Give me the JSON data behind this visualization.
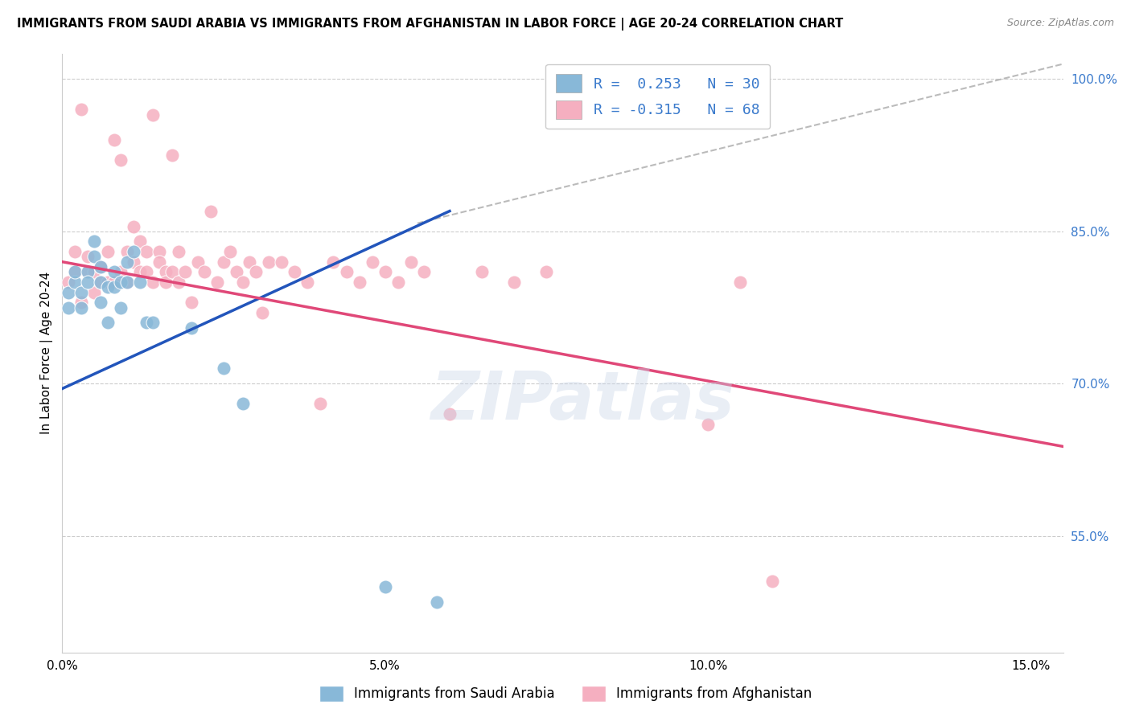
{
  "title": "IMMIGRANTS FROM SAUDI ARABIA VS IMMIGRANTS FROM AFGHANISTAN IN LABOR FORCE | AGE 20-24 CORRELATION CHART",
  "source": "Source: ZipAtlas.com",
  "ylabel": "In Labor Force | Age 20-24",
  "xmin": 0.0,
  "xmax": 0.155,
  "ymin": 0.435,
  "ymax": 1.025,
  "right_ytick_labels": [
    "100.0%",
    "85.0%",
    "70.0%",
    "55.0%"
  ],
  "right_ytick_positions": [
    1.0,
    0.85,
    0.7,
    0.55
  ],
  "xticks": [
    0.0,
    0.05,
    0.1,
    0.15
  ],
  "xtick_labels": [
    "0.0%",
    "5.0%",
    "10.0%",
    "15.0%"
  ],
  "saudi_color": "#88b8d8",
  "afghan_color": "#f5afc0",
  "saudi_line_color": "#2255bb",
  "afghan_line_color": "#e04878",
  "grid_color": "#cccccc",
  "watermark": "ZIPatlas",
  "saudi_line_x0": 0.0,
  "saudi_line_y0": 0.695,
  "saudi_line_x1": 0.06,
  "saudi_line_y1": 0.87,
  "afghan_line_x0": 0.0,
  "afghan_line_y0": 0.82,
  "afghan_line_x1": 0.155,
  "afghan_line_y1": 0.638,
  "dash_line_x0": 0.055,
  "dash_line_y0": 0.858,
  "dash_line_x1": 0.155,
  "dash_line_y1": 1.015,
  "saudi_x": [
    0.001,
    0.001,
    0.002,
    0.002,
    0.003,
    0.003,
    0.004,
    0.004,
    0.005,
    0.005,
    0.006,
    0.006,
    0.006,
    0.007,
    0.007,
    0.008,
    0.008,
    0.009,
    0.009,
    0.01,
    0.01,
    0.011,
    0.012,
    0.013,
    0.014,
    0.02,
    0.025,
    0.028,
    0.05,
    0.058
  ],
  "saudi_y": [
    0.79,
    0.775,
    0.8,
    0.81,
    0.79,
    0.775,
    0.81,
    0.8,
    0.84,
    0.825,
    0.8,
    0.815,
    0.78,
    0.795,
    0.76,
    0.81,
    0.795,
    0.8,
    0.775,
    0.82,
    0.8,
    0.83,
    0.8,
    0.76,
    0.76,
    0.755,
    0.715,
    0.68,
    0.5,
    0.485
  ],
  "afghan_x": [
    0.001,
    0.002,
    0.002,
    0.003,
    0.003,
    0.004,
    0.004,
    0.005,
    0.005,
    0.006,
    0.006,
    0.007,
    0.007,
    0.008,
    0.008,
    0.009,
    0.009,
    0.01,
    0.01,
    0.011,
    0.011,
    0.012,
    0.012,
    0.013,
    0.013,
    0.014,
    0.014,
    0.015,
    0.015,
    0.016,
    0.016,
    0.017,
    0.017,
    0.018,
    0.018,
    0.019,
    0.02,
    0.021,
    0.022,
    0.023,
    0.024,
    0.025,
    0.026,
    0.027,
    0.028,
    0.029,
    0.03,
    0.031,
    0.032,
    0.034,
    0.036,
    0.038,
    0.04,
    0.042,
    0.044,
    0.046,
    0.048,
    0.05,
    0.052,
    0.054,
    0.056,
    0.06,
    0.065,
    0.07,
    0.075,
    0.1,
    0.105,
    0.11
  ],
  "afghan_y": [
    0.8,
    0.83,
    0.81,
    0.78,
    0.97,
    0.825,
    0.81,
    0.79,
    0.81,
    0.8,
    0.815,
    0.8,
    0.83,
    0.8,
    0.94,
    0.92,
    0.81,
    0.8,
    0.83,
    0.855,
    0.82,
    0.84,
    0.81,
    0.83,
    0.81,
    0.965,
    0.8,
    0.83,
    0.82,
    0.81,
    0.8,
    0.925,
    0.81,
    0.8,
    0.83,
    0.81,
    0.78,
    0.82,
    0.81,
    0.87,
    0.8,
    0.82,
    0.83,
    0.81,
    0.8,
    0.82,
    0.81,
    0.77,
    0.82,
    0.82,
    0.81,
    0.8,
    0.68,
    0.82,
    0.81,
    0.8,
    0.82,
    0.81,
    0.8,
    0.82,
    0.81,
    0.67,
    0.81,
    0.8,
    0.81,
    0.66,
    0.8,
    0.505
  ],
  "background_color": "#ffffff"
}
